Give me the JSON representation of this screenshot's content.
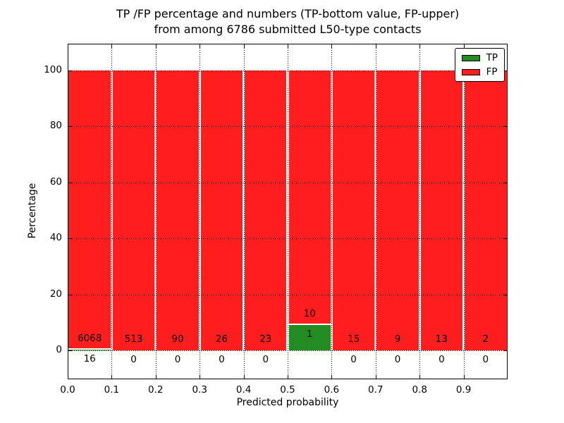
{
  "title": {
    "line1": "TP /FP percentage and numbers (TP-bottom value, FP-upper)",
    "line2": "from among 6786 submitted L50-type contacts"
  },
  "axes": {
    "xlabel": "Predicted probability",
    "ylabel": "Percentage"
  },
  "chart_data": {
    "type": "bar",
    "variant": "stacked-percentage",
    "title": "TP /FP percentage and numbers (TP-bottom value, FP-upper) from among 6786 submitted L50-type contacts",
    "xlabel": "Predicted probability",
    "ylabel": "Percentage",
    "total_contacts": 6786,
    "bin_width": 0.1,
    "bin_starts": [
      0.0,
      0.1,
      0.2,
      0.3,
      0.4,
      0.5,
      0.6,
      0.7,
      0.8,
      0.9
    ],
    "xtick_labels": [
      "0.0",
      "0.1",
      "0.2",
      "0.3",
      "0.4",
      "0.5",
      "0.6",
      "0.7",
      "0.8",
      "0.9"
    ],
    "ytick_values": [
      0,
      20,
      40,
      60,
      80,
      100
    ],
    "xlim": [
      0.0,
      1.0
    ],
    "ylim": [
      -10,
      110
    ],
    "grid": "dotted-black",
    "series": [
      {
        "name": "TP",
        "color": "#228b22",
        "counts": [
          16,
          0,
          0,
          0,
          0,
          1,
          0,
          0,
          0,
          0
        ]
      },
      {
        "name": "FP",
        "color": "#ff1e1e",
        "counts": [
          6068,
          513,
          90,
          26,
          23,
          10,
          15,
          9,
          13,
          2
        ]
      }
    ],
    "tp_percent_per_bin": [
      0.26,
      0.0,
      0.0,
      0.0,
      0.0,
      9.09,
      0.0,
      0.0,
      0.0,
      0.0
    ],
    "legend_position": "upper right"
  }
}
